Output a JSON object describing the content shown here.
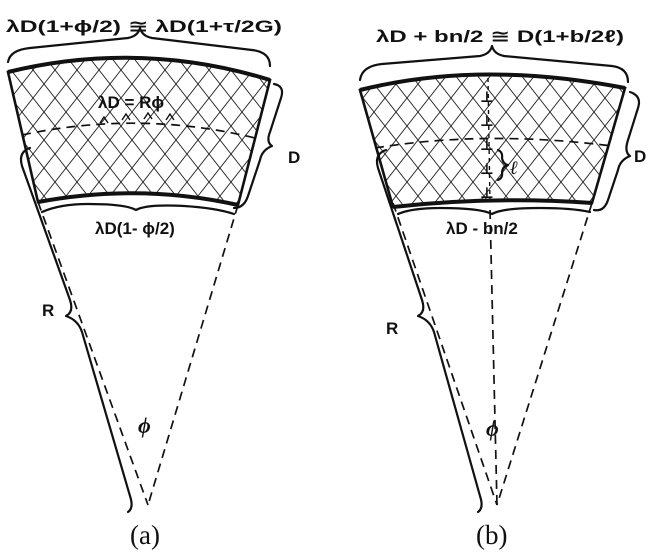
{
  "panel_a": {
    "caption": "(a)",
    "top_label": "λD(1+ϕ/2) ≅ λD(1+τ/2G)",
    "mid_label": "λD = Rϕ",
    "bottom_label": "λD(1- ϕ/2)",
    "thickness_label": "D",
    "radius_label": "R",
    "angle_label": "ϕ"
  },
  "panel_b": {
    "caption": "(b)",
    "top_label": "λD + bn/2 ≅ D(1+b/2ℓ)",
    "bottom_label": "λD - bn/2",
    "thickness_label": "D",
    "radius_label": "R",
    "angle_label": "ϕ",
    "spacing_label": "ℓ",
    "dislocation_symbol": "⊥"
  }
}
